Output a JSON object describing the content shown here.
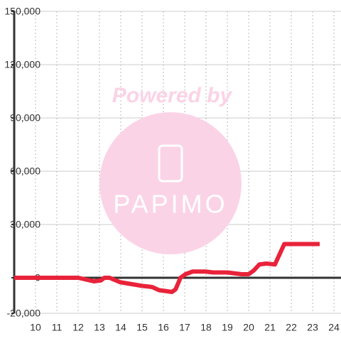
{
  "chart_data": {
    "type": "line",
    "watermark": {
      "line1": "Powered by",
      "line2": "PAPIMO"
    },
    "x": [
      9.0,
      12.0,
      12.3,
      12.73,
      13.07,
      13.23,
      13.47,
      13.97,
      14.47,
      14.97,
      15.47,
      15.8,
      16.13,
      16.4,
      16.57,
      16.8,
      17.03,
      17.37,
      17.97,
      18.33,
      19.0,
      19.67,
      20.0,
      20.23,
      20.5,
      20.83,
      21.23,
      21.67,
      23.33
    ],
    "series": [
      {
        "color": "#e8233a",
        "values": [
          0,
          0,
          -800,
          -2000,
          -1500,
          0,
          0,
          -2500,
          -3500,
          -4500,
          -5200,
          -7000,
          -7500,
          -8000,
          -6500,
          0,
          2000,
          3500,
          3500,
          3000,
          3000,
          2000,
          2000,
          4000,
          7500,
          8000,
          7500,
          19000,
          19000
        ]
      }
    ],
    "xlim": [
      9,
      24.33
    ],
    "xticks": [
      10,
      11,
      12,
      13,
      14,
      15,
      16,
      17,
      18,
      19,
      20,
      21,
      22,
      23,
      24
    ],
    "ylim": [
      -20000,
      150000
    ],
    "yticks": [
      {
        "value": -20000,
        "label": "-20,000"
      },
      0,
      {
        "value": 30000,
        "label": "30,000"
      },
      {
        "value": 60000,
        "label": "60,000"
      },
      {
        "value": 90000,
        "label": "90,000"
      },
      {
        "value": 120000,
        "label": "120,000"
      },
      {
        "value": 150000,
        "label": "150,000"
      }
    ],
    "grid": true
  }
}
